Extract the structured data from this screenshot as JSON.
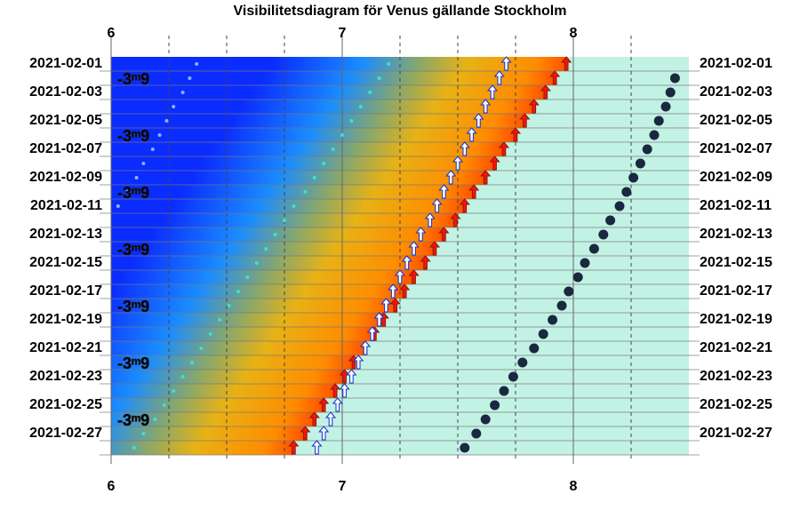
{
  "chart_data": {
    "type": "visibility",
    "title": "Visibilitetsdiagram för Venus gällande Stockholm",
    "categories": [
      "2021-02-01",
      null,
      "2021-02-03",
      null,
      "2021-02-05",
      null,
      "2021-02-07",
      null,
      "2021-02-09",
      null,
      "2021-02-11",
      null,
      "2021-02-13",
      null,
      "2021-02-15",
      null,
      "2021-02-17",
      null,
      "2021-02-19",
      null,
      "2021-02-21",
      null,
      "2021-02-23",
      null,
      "2021-02-25",
      null,
      "2021-02-27",
      null
    ],
    "xlim": [
      6,
      8.5
    ],
    "xticks": [
      6,
      7,
      8
    ],
    "xminorticks": [
      6.25,
      6.5,
      6.75,
      7.25,
      7.5,
      7.75,
      8.25
    ],
    "series": [
      {
        "color": "#1a2840",
        "marker": "dot",
        "values": [
          null,
          8.44,
          8.42,
          8.4,
          8.37,
          8.35,
          8.32,
          8.29,
          8.26,
          8.23,
          8.2,
          8.16,
          8.13,
          8.09,
          8.05,
          8.02,
          7.98,
          7.95,
          7.91,
          7.87,
          7.83,
          7.78,
          7.74,
          7.7,
          7.66,
          7.62,
          7.58,
          7.53
        ]
      },
      {
        "color": "#ff1010",
        "marker": "arrow",
        "values": [
          7.97,
          7.92,
          7.88,
          7.83,
          7.79,
          7.75,
          7.7,
          7.66,
          7.62,
          7.57,
          7.53,
          7.49,
          7.44,
          7.4,
          7.36,
          7.31,
          7.27,
          7.23,
          7.18,
          7.14,
          7.1,
          7.05,
          7.01,
          6.97,
          6.92,
          6.88,
          6.84,
          6.79
        ]
      },
      {
        "color": "#ffffff",
        "marker": "arrow",
        "values": [
          7.71,
          7.68,
          7.65,
          7.62,
          7.59,
          7.56,
          7.53,
          7.5,
          7.47,
          7.44,
          7.41,
          7.38,
          7.34,
          7.31,
          7.28,
          7.25,
          7.22,
          7.19,
          7.16,
          7.13,
          7.1,
          7.07,
          7.04,
          7.01,
          6.98,
          6.95,
          6.92,
          6.89
        ]
      },
      {
        "color": "#40e0d0",
        "marker": "small",
        "values": [
          7.2,
          7.16,
          7.12,
          7.08,
          7.04,
          7.0,
          6.96,
          6.92,
          6.88,
          6.84,
          6.79,
          6.75,
          6.71,
          6.67,
          6.63,
          6.59,
          6.55,
          6.51,
          6.47,
          6.43,
          6.39,
          6.35,
          6.31,
          6.27,
          6.23,
          6.19,
          6.14,
          6.1
        ]
      },
      {
        "color": "#8ab4ff",
        "marker": "small",
        "values": [
          6.37,
          6.34,
          6.31,
          6.27,
          6.24,
          6.21,
          6.18,
          6.14,
          6.11,
          6.07,
          6.03,
          null,
          null,
          null,
          null,
          null,
          null,
          null,
          null,
          null,
          null,
          null,
          null,
          null,
          null,
          null,
          null,
          null
        ]
      }
    ],
    "magnitudes": {
      "values": [
        null,
        -3.9,
        null,
        null,
        null,
        -3.9,
        null,
        null,
        null,
        -3.9,
        null,
        null,
        null,
        -3.9,
        null,
        null,
        null,
        -3.9,
        null,
        null,
        null,
        -3.9,
        null,
        null,
        null,
        -3.9,
        null,
        null
      ],
      "value_labels": [
        null,
        "-3ᵐ9",
        null,
        null,
        null,
        "-3ᵐ9",
        null,
        null,
        null,
        "-3ᵐ9",
        null,
        null,
        null,
        "-3ᵐ9",
        null,
        null,
        null,
        "-3ᵐ9",
        null,
        null,
        null,
        "-3ᵐ9",
        null,
        null,
        null,
        "-3ᵐ9",
        null,
        null
      ]
    },
    "background_after": "#c2f2e4"
  }
}
